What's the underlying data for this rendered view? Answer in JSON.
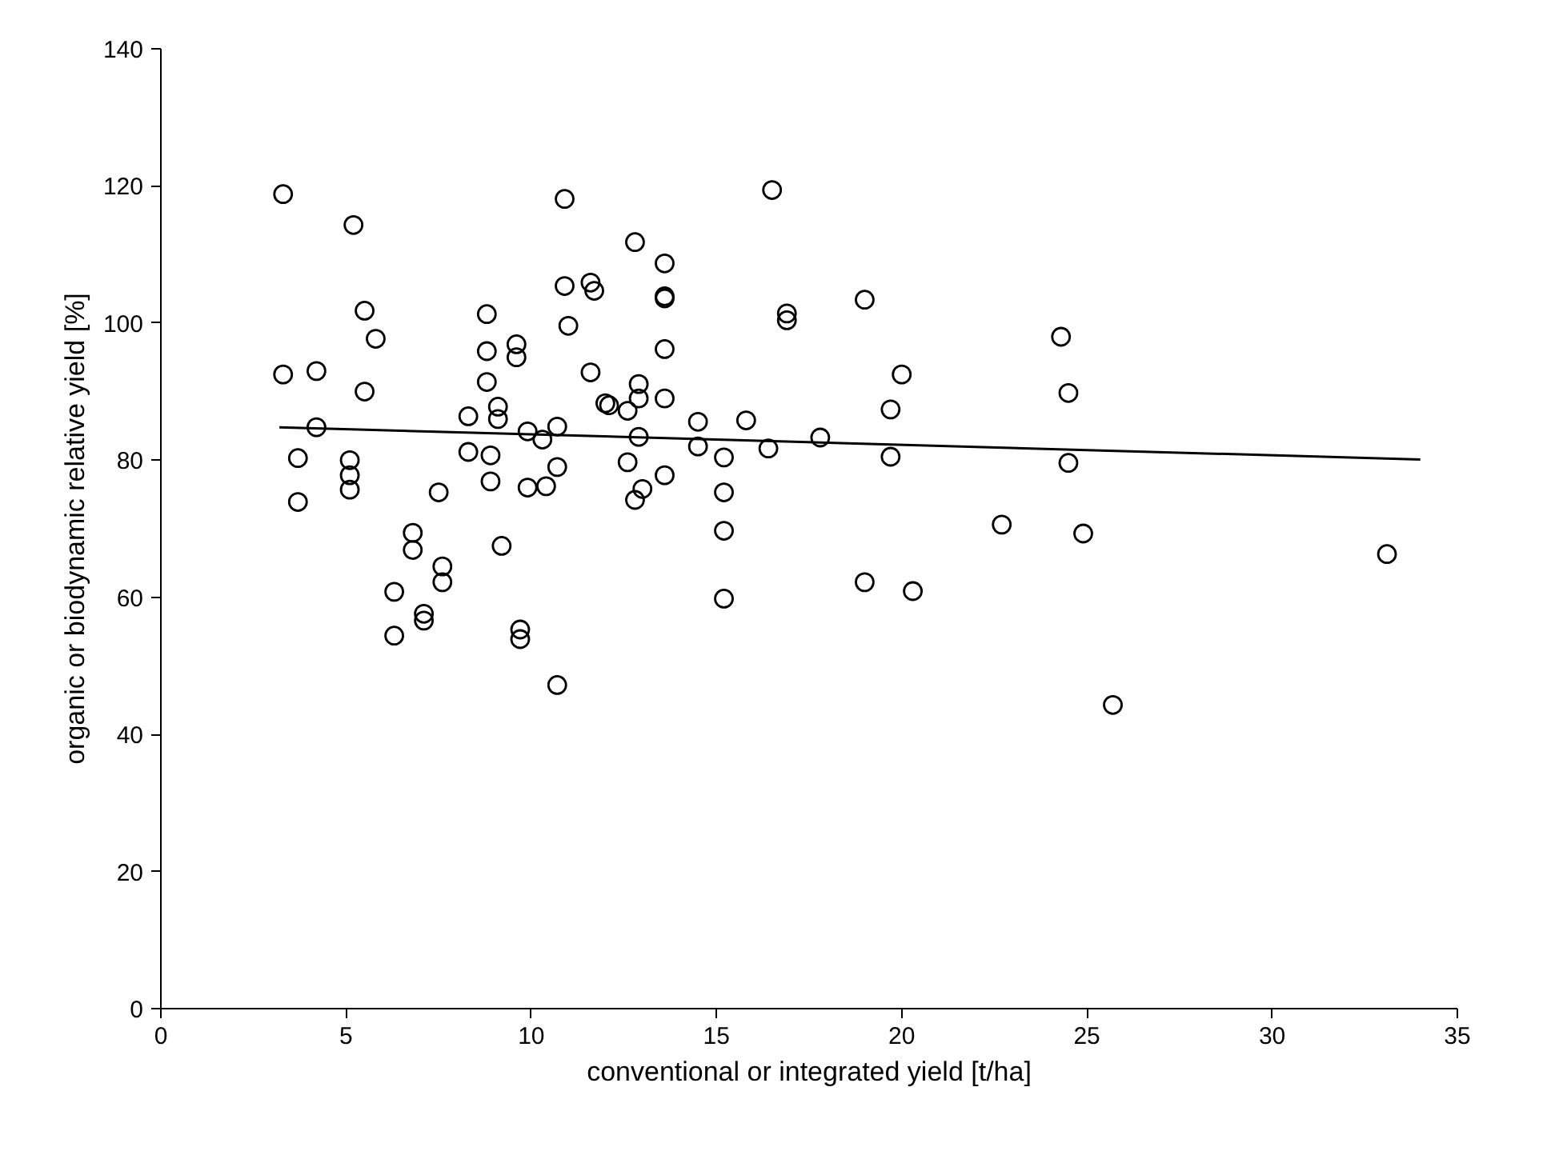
{
  "chart_data": {
    "type": "scatter",
    "xlabel": "conventional or integrated yield [t/ha]",
    "ylabel": "organic or biodynamic relative yield [%]",
    "xlim": [
      0,
      35
    ],
    "ylim": [
      0,
      140
    ],
    "xticks": [
      0,
      5,
      10,
      15,
      20,
      25,
      30,
      35
    ],
    "yticks": [
      0,
      20,
      40,
      60,
      80,
      100,
      120,
      140
    ],
    "grid": false,
    "series": [
      {
        "marker": "circle",
        "color": "#000000",
        "x": [
          3.3,
          3.3,
          3.7,
          3.7,
          4.2,
          4.2,
          5.1,
          5.1,
          5.1,
          5.2,
          5.5,
          5.5,
          5.8,
          6.3,
          6.3,
          6.8,
          6.8,
          7.1,
          7.1,
          7.5,
          7.6,
          7.6,
          8.3,
          8.3,
          8.8,
          8.8,
          8.8,
          8.9,
          8.9,
          9.1,
          9.1,
          9.2,
          9.6,
          9.6,
          9.7,
          9.7,
          9.9,
          9.9,
          10.3,
          10.4,
          10.7,
          10.7,
          10.7,
          10.9,
          10.9,
          11.0,
          11.6,
          11.7,
          11.6,
          12.0,
          12.1,
          12.6,
          12.6,
          12.8,
          12.9,
          12.9,
          12.9,
          12.8,
          13.0,
          13.6,
          13.6,
          13.6,
          13.6,
          13.6,
          13.6,
          14.5,
          14.5,
          15.2,
          15.2,
          15.2,
          15.2,
          15.8,
          16.4,
          16.5,
          16.9,
          16.9,
          17.8,
          19.0,
          19.0,
          19.7,
          19.7,
          20.0,
          20.3,
          22.7,
          24.3,
          24.5,
          24.5,
          24.9,
          25.7,
          33.1
        ],
        "values": [
          118.8,
          92.5,
          80.3,
          73.9,
          93,
          84.8,
          80,
          77.8,
          75.7,
          114.3,
          101.8,
          90,
          97.7,
          60.8,
          54.4,
          69.4,
          66.9,
          57.6,
          56.6,
          75.3,
          64.5,
          62.2,
          86.4,
          81.2,
          101.3,
          95.9,
          91.4,
          80.7,
          76.9,
          87.8,
          86,
          67.5,
          96.9,
          95,
          55.3,
          53.9,
          84.2,
          76,
          83,
          76.2,
          84.9,
          79,
          47.2,
          118.1,
          105.4,
          99.6,
          105.9,
          104.7,
          92.8,
          88.3,
          88,
          87.2,
          79.7,
          111.8,
          91.1,
          89,
          83.4,
          74.2,
          75.8,
          108.7,
          103.9,
          103.6,
          96.2,
          89,
          77.8,
          85.6,
          82,
          80.4,
          75.3,
          69.7,
          59.8,
          85.8,
          81.7,
          119.4,
          101.4,
          100.4,
          83.3,
          103.4,
          62.2,
          87.4,
          80.5,
          92.5,
          60.9,
          70.6,
          98,
          89.8,
          79.6,
          69.3,
          44.3,
          66.3
        ]
      },
      {
        "type": "line",
        "color": "#000000",
        "x": [
          3.2,
          34
        ],
        "values": [
          84.8,
          80.1
        ]
      }
    ]
  }
}
